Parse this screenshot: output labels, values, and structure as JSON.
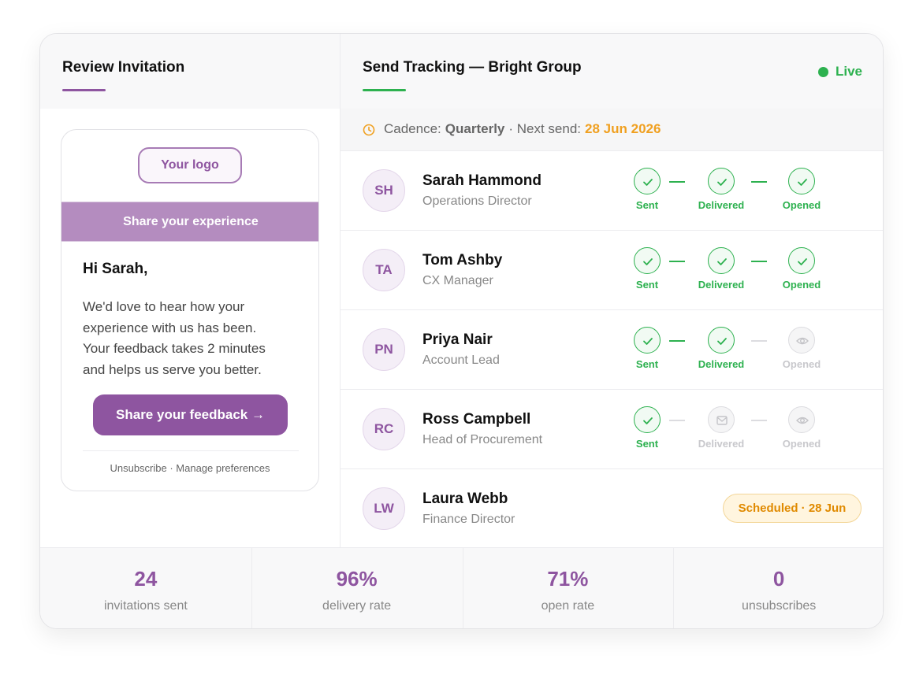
{
  "left": {
    "title": "Review Invitation"
  },
  "email": {
    "logo": "Your logo",
    "banner": "Share your experience",
    "greeting": "Hi Sarah,",
    "body": "We'd love to hear how your experience with us has been. Your feedback takes 2 minutes and helps us serve you better.",
    "button": "Share your feedback →",
    "footer": "Unsubscribe · Manage preferences"
  },
  "right": {
    "title": "Send Tracking — Bright Group",
    "status": "Live"
  },
  "cadence": {
    "label": "Cadence:",
    "value": "Quarterly",
    "next_label": "· Next send:",
    "next_date": "28 Jun 2026"
  },
  "recipients": [
    {
      "initials": "SH",
      "name": "Sarah Hammond",
      "role": "Operations Director",
      "steps": [
        {
          "label": "Sent",
          "status": "done"
        },
        {
          "label": "Delivered",
          "status": "done"
        },
        {
          "label": "Opened",
          "status": "done"
        }
      ]
    },
    {
      "initials": "TA",
      "name": "Tom Ashby",
      "role": "CX Manager",
      "steps": [
        {
          "label": "Sent",
          "status": "done"
        },
        {
          "label": "Delivered",
          "status": "done"
        },
        {
          "label": "Opened",
          "status": "done"
        }
      ]
    },
    {
      "initials": "PN",
      "name": "Priya Nair",
      "role": "Account Lead",
      "steps": [
        {
          "label": "Sent",
          "status": "done"
        },
        {
          "label": "Delivered",
          "status": "done"
        },
        {
          "label": "Opened",
          "status": "pending"
        }
      ]
    },
    {
      "initials": "RC",
      "name": "Ross Campbell",
      "role": "Head of Procurement",
      "steps": [
        {
          "label": "Sent",
          "status": "done"
        },
        {
          "label": "Delivered",
          "status": "pending"
        },
        {
          "label": "Opened",
          "status": "pending"
        }
      ]
    },
    {
      "initials": "LW",
      "name": "Laura Webb",
      "role": "Finance Director",
      "scheduled": "Scheduled · 28 Jun"
    }
  ],
  "stats": [
    {
      "value": "24",
      "label": "invitations sent"
    },
    {
      "value": "96%",
      "label": "delivery rate"
    },
    {
      "value": "71%",
      "label": "open rate"
    },
    {
      "value": "0",
      "label": "unsubscribes"
    }
  ]
}
